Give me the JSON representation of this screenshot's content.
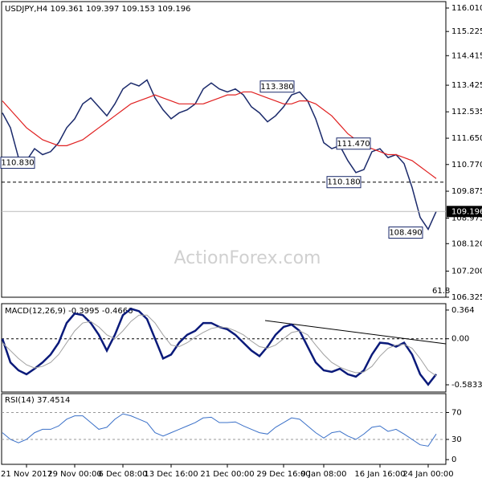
{
  "chart_data": {
    "type": "line",
    "title": "USDJPY,H4  109.361 109.397 109.153 109.196",
    "watermark": "ActionForex.com",
    "categories": [
      null,
      null,
      null,
      "21 Nov 2017",
      null,
      null,
      null,
      null,
      null,
      "29 Nov 00:00",
      null,
      null,
      null,
      null,
      null,
      "6 Dec 08:00",
      null,
      null,
      null,
      null,
      null,
      "13 Dec 16:00",
      null,
      null,
      null,
      null,
      null,
      null,
      "21 Dec 00:00",
      null,
      null,
      null,
      null,
      null,
      null,
      "29 Dec 16:00",
      null,
      null,
      null,
      null,
      "9 Jan 08:00",
      null,
      null,
      null,
      null,
      null,
      null,
      "16 Jan 16:00",
      null,
      null,
      null,
      null,
      null,
      "24 Jan 00:00",
      null
    ],
    "ylim": [
      106.325,
      116.225
    ],
    "yticks": [
      {
        "value": 116.01,
        "label": "116.010"
      },
      115.225,
      114.415,
      113.425,
      112.535,
      {
        "value": 111.65,
        "label": "111.650"
      },
      {
        "value": 110.77,
        "label": "110.770"
      },
      109.875,
      108.975,
      {
        "value": 108.12,
        "label": "108.120"
      },
      {
        "value": 107.2,
        "label": "107.200"
      },
      106.325
    ],
    "series": [
      {
        "name": "USDJPY",
        "color": "#1b2a6b",
        "values": [
          112.5,
          112.0,
          111.0,
          110.9,
          111.3,
          111.1,
          111.2,
          111.5,
          112.0,
          112.3,
          112.8,
          113.0,
          112.7,
          112.4,
          112.8,
          113.3,
          113.5,
          113.4,
          113.6,
          113.0,
          112.6,
          112.3,
          112.5,
          112.6,
          112.8,
          113.3,
          113.5,
          113.3,
          113.2,
          113.3,
          113.1,
          112.7,
          112.5,
          112.2,
          112.4,
          112.7,
          113.1,
          113.2,
          112.9,
          112.3,
          111.5,
          111.3,
          111.4,
          110.9,
          110.5,
          110.6,
          111.2,
          111.3,
          111.0,
          111.1,
          110.8,
          110.0,
          109.0,
          108.6,
          109.2
        ]
      },
      {
        "name": "MA",
        "color": "#e02020",
        "values": [
          112.9,
          112.6,
          112.3,
          112.0,
          111.8,
          111.6,
          111.5,
          111.4,
          111.4,
          111.5,
          111.6,
          111.8,
          112.0,
          112.2,
          112.4,
          112.6,
          112.8,
          112.9,
          113.0,
          113.1,
          113.0,
          112.9,
          112.8,
          112.8,
          112.8,
          112.8,
          112.9,
          113.0,
          113.1,
          113.1,
          113.2,
          113.2,
          113.1,
          113.0,
          112.9,
          112.8,
          112.8,
          112.9,
          112.9,
          112.8,
          112.6,
          112.4,
          112.1,
          111.8,
          111.6,
          111.4,
          111.3,
          111.2,
          111.1,
          111.1,
          111.0,
          110.9,
          110.7,
          110.5,
          110.3
        ]
      }
    ],
    "annotations": [
      {
        "text": "110.830",
        "value": 110.83
      },
      {
        "text": "113.380",
        "value": 113.38
      },
      {
        "text": "111.470",
        "value": 111.47
      },
      {
        "text": "110.180",
        "value": 110.18
      },
      {
        "text": "108.490",
        "value": 108.49
      }
    ],
    "level_line": 110.18,
    "last_price": 109.196,
    "fib_label": "61.8",
    "macd": {
      "title": "MACD(12,26,9) -0.3995 -0.4666",
      "ylim": [
        -0.675,
        0.445
      ],
      "yticks": [
        0.364,
        {
          "value": 0,
          "label": "0.00"
        },
        -0.5833
      ],
      "series": [
        {
          "name": "MACD",
          "color": "#0a1a7a",
          "values": [
            0.0,
            -0.3,
            -0.4,
            -0.45,
            -0.38,
            -0.3,
            -0.2,
            -0.05,
            0.2,
            0.32,
            0.3,
            0.2,
            0.05,
            -0.15,
            0.05,
            0.3,
            0.38,
            0.35,
            0.25,
            0.0,
            -0.25,
            -0.2,
            -0.05,
            0.05,
            0.1,
            0.2,
            0.2,
            0.15,
            0.12,
            0.05,
            -0.05,
            -0.15,
            -0.22,
            -0.1,
            0.05,
            0.15,
            0.18,
            0.1,
            -0.1,
            -0.3,
            -0.4,
            -0.42,
            -0.38,
            -0.45,
            -0.48,
            -0.4,
            -0.2,
            -0.05,
            -0.06,
            -0.1,
            -0.05,
            -0.2,
            -0.45,
            -0.58,
            -0.45
          ]
        },
        {
          "name": "Signal",
          "color": "#a0a0a0",
          "values": [
            -0.05,
            -0.15,
            -0.25,
            -0.33,
            -0.37,
            -0.35,
            -0.3,
            -0.2,
            -0.05,
            0.1,
            0.2,
            0.22,
            0.15,
            0.05,
            0.0,
            0.1,
            0.22,
            0.3,
            0.3,
            0.2,
            0.05,
            -0.08,
            -0.1,
            -0.05,
            0.02,
            0.08,
            0.13,
            0.15,
            0.14,
            0.1,
            0.05,
            -0.03,
            -0.1,
            -0.12,
            -0.08,
            0.0,
            0.08,
            0.1,
            0.05,
            -0.08,
            -0.2,
            -0.3,
            -0.36,
            -0.4,
            -0.43,
            -0.42,
            -0.35,
            -0.22,
            -0.12,
            -0.08,
            -0.07,
            -0.12,
            -0.25,
            -0.4,
            -0.47
          ]
        }
      ]
    },
    "rsi": {
      "title": "RSI(14) 37.4514",
      "ylim": [
        -7,
        98
      ],
      "yticks": [
        70,
        30,
        0
      ],
      "series": [
        {
          "name": "RSI",
          "color": "#3a70c8",
          "values": [
            40,
            30,
            25,
            30,
            40,
            45,
            45,
            50,
            60,
            65,
            65,
            55,
            45,
            48,
            60,
            68,
            65,
            60,
            55,
            40,
            35,
            40,
            45,
            50,
            55,
            62,
            63,
            55,
            55,
            56,
            50,
            45,
            40,
            38,
            48,
            55,
            62,
            60,
            50,
            40,
            32,
            40,
            42,
            35,
            30,
            38,
            48,
            50,
            42,
            45,
            38,
            30,
            22,
            20,
            38
          ]
        }
      ]
    }
  }
}
